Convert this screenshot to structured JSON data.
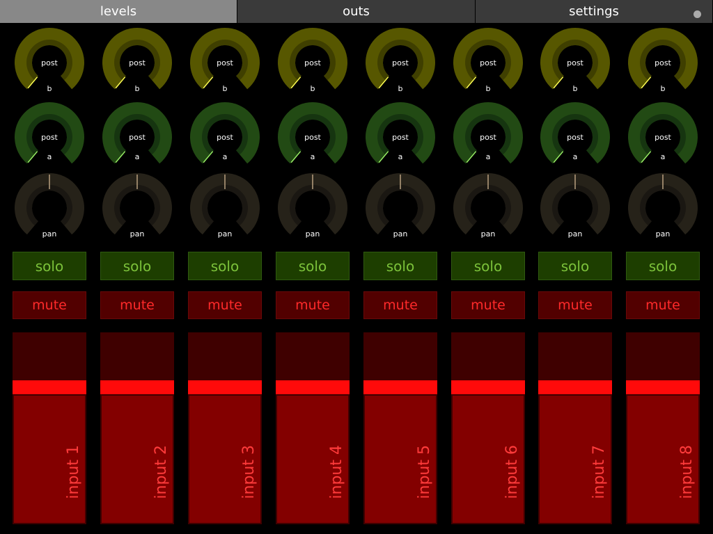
{
  "tabs": [
    {
      "label": "levels",
      "active": true
    },
    {
      "label": "outs",
      "active": false
    },
    {
      "label": "settings",
      "active": false
    }
  ],
  "colors": {
    "knob_b": "#575700",
    "knob_b_inner": "#3f3f00",
    "knob_b_indicator": "#ffff55",
    "knob_a": "#224a14",
    "knob_a_inner": "#163510",
    "knob_a_indicator": "#99ee66",
    "knob_pan": "#262219",
    "knob_pan_inner": "#1a1712",
    "knob_pan_indicator": "#b8a080"
  },
  "channels": [
    {
      "send_b": {
        "top": "post",
        "bottom": "b",
        "value": 0
      },
      "send_a": {
        "top": "post",
        "bottom": "a",
        "value": 0
      },
      "pan": {
        "label": "pan",
        "value": 0.5
      },
      "solo": "solo",
      "mute": "mute",
      "fader": {
        "label": "input 1",
        "value": 0.73
      }
    },
    {
      "send_b": {
        "top": "post",
        "bottom": "b",
        "value": 0
      },
      "send_a": {
        "top": "post",
        "bottom": "a",
        "value": 0
      },
      "pan": {
        "label": "pan",
        "value": 0.5
      },
      "solo": "solo",
      "mute": "mute",
      "fader": {
        "label": "input 2",
        "value": 0.73
      }
    },
    {
      "send_b": {
        "top": "post",
        "bottom": "b",
        "value": 0
      },
      "send_a": {
        "top": "post",
        "bottom": "a",
        "value": 0
      },
      "pan": {
        "label": "pan",
        "value": 0.5
      },
      "solo": "solo",
      "mute": "mute",
      "fader": {
        "label": "input 3",
        "value": 0.73
      }
    },
    {
      "send_b": {
        "top": "post",
        "bottom": "b",
        "value": 0
      },
      "send_a": {
        "top": "post",
        "bottom": "a",
        "value": 0
      },
      "pan": {
        "label": "pan",
        "value": 0.5
      },
      "solo": "solo",
      "mute": "mute",
      "fader": {
        "label": "input 4",
        "value": 0.73
      }
    },
    {
      "send_b": {
        "top": "post",
        "bottom": "b",
        "value": 0
      },
      "send_a": {
        "top": "post",
        "bottom": "a",
        "value": 0
      },
      "pan": {
        "label": "pan",
        "value": 0.5
      },
      "solo": "solo",
      "mute": "mute",
      "fader": {
        "label": "input 5",
        "value": 0.73
      }
    },
    {
      "send_b": {
        "top": "post",
        "bottom": "b",
        "value": 0
      },
      "send_a": {
        "top": "post",
        "bottom": "a",
        "value": 0
      },
      "pan": {
        "label": "pan",
        "value": 0.5
      },
      "solo": "solo",
      "mute": "mute",
      "fader": {
        "label": "input 6",
        "value": 0.73
      }
    },
    {
      "send_b": {
        "top": "post",
        "bottom": "b",
        "value": 0
      },
      "send_a": {
        "top": "post",
        "bottom": "a",
        "value": 0
      },
      "pan": {
        "label": "pan",
        "value": 0.5
      },
      "solo": "solo",
      "mute": "mute",
      "fader": {
        "label": "input 7",
        "value": 0.73
      }
    },
    {
      "send_b": {
        "top": "post",
        "bottom": "b",
        "value": 0
      },
      "send_a": {
        "top": "post",
        "bottom": "a",
        "value": 0
      },
      "pan": {
        "label": "pan",
        "value": 0.5
      },
      "solo": "solo",
      "mute": "mute",
      "fader": {
        "label": "input 8",
        "value": 0.73
      }
    }
  ]
}
